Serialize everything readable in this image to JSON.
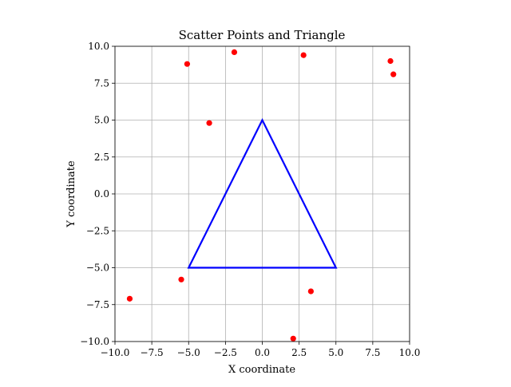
{
  "chart_data": {
    "type": "scatter",
    "title": "Scatter Points and Triangle",
    "xlabel": "X coordinate",
    "ylabel": "Y coordinate",
    "xlim": [
      -10,
      10
    ],
    "ylim": [
      -10,
      10
    ],
    "xticks": [
      -10,
      -7.5,
      -5,
      -2.5,
      0,
      2.5,
      5,
      7.5,
      10
    ],
    "yticks": [
      -10,
      -7.5,
      -5,
      -2.5,
      0,
      2.5,
      5,
      7.5,
      10
    ],
    "xtick_labels": [
      "−10.0",
      "−7.5",
      "−5.0",
      "−2.5",
      "0.0",
      "2.5",
      "5.0",
      "7.5",
      "10.0"
    ],
    "ytick_labels": [
      "−10.0",
      "−7.5",
      "−5.0",
      "−2.5",
      "0.0",
      "2.5",
      "5.0",
      "7.5",
      "10.0"
    ],
    "grid": true,
    "points": {
      "color": "#ff0000",
      "x": [
        -5.1,
        -1.9,
        2.8,
        8.7,
        8.9,
        -3.6,
        -5.5,
        -9.0,
        3.3,
        2.1
      ],
      "y": [
        8.8,
        9.6,
        9.4,
        9.0,
        8.1,
        4.8,
        -5.8,
        -7.1,
        -6.6,
        -9.8
      ]
    },
    "triangle": {
      "color": "#0000ff",
      "x": [
        0,
        5,
        -5
      ],
      "y": [
        5,
        -5,
        -5
      ]
    }
  }
}
